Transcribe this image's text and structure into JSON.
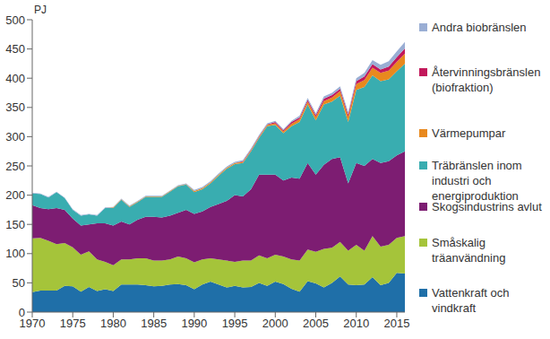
{
  "chart_data": {
    "type": "area",
    "stacked": true,
    "ylabel": "PJ",
    "grid": false,
    "legend": "right",
    "x": [
      1970,
      1971,
      1972,
      1973,
      1974,
      1975,
      1976,
      1977,
      1978,
      1979,
      1980,
      1981,
      1982,
      1983,
      1984,
      1985,
      1986,
      1987,
      1988,
      1989,
      1990,
      1991,
      1992,
      1993,
      1994,
      1995,
      1996,
      1997,
      1998,
      1999,
      2000,
      2001,
      2002,
      2003,
      2004,
      2005,
      2006,
      2007,
      2008,
      2009,
      2010,
      2011,
      2012,
      2013,
      2014,
      2015,
      2016
    ],
    "xlim": [
      1970,
      2016
    ],
    "xticks": [
      1970,
      1975,
      1980,
      1985,
      1990,
      1995,
      2000,
      2005,
      2010,
      2015
    ],
    "ylim": [
      0,
      500
    ],
    "yticks": [
      0,
      50,
      100,
      150,
      200,
      250,
      300,
      350,
      400,
      450,
      500
    ],
    "series": [
      {
        "name": "Vattenkraft och vindkraft",
        "color": "#1f6fa8",
        "values": [
          34,
          37,
          37,
          37,
          45,
          44,
          35,
          43,
          36,
          39,
          36,
          47,
          47,
          47,
          46,
          44,
          45,
          47,
          48,
          46,
          39,
          47,
          52,
          47,
          42,
          45,
          42,
          43,
          50,
          45,
          52,
          48,
          40,
          35,
          53,
          49,
          42,
          50,
          61,
          47,
          46,
          47,
          60,
          46,
          50,
          67,
          66
        ]
      },
      {
        "name": "Småskalig träanvändning",
        "color": "#a5c43a",
        "values": [
          92,
          90,
          85,
          79,
          73,
          67,
          63,
          61,
          54,
          47,
          44,
          43,
          43,
          45,
          46,
          44,
          43,
          43,
          47,
          46,
          46,
          43,
          40,
          43,
          46,
          41,
          46,
          45,
          47,
          47,
          46,
          47,
          50,
          53,
          54,
          54,
          66,
          60,
          59,
          58,
          69,
          58,
          70,
          66,
          65,
          60,
          64
        ]
      },
      {
        "name": "Skogsindustrins avlut",
        "color": "#7d1d72",
        "values": [
          57,
          51,
          54,
          62,
          57,
          49,
          50,
          46,
          62,
          66,
          68,
          65,
          60,
          66,
          71,
          75,
          74,
          75,
          75,
          83,
          83,
          82,
          88,
          95,
          102,
          114,
          110,
          122,
          138,
          143,
          137,
          130,
          140,
          140,
          148,
          132,
          144,
          152,
          145,
          115,
          140,
          145,
          132,
          143,
          143,
          141,
          145
        ]
      },
      {
        "name": "Träbränslen inom industri och energiproduktion",
        "color": "#39adb0",
        "values": [
          20,
          24,
          20,
          27,
          20,
          15,
          17,
          17,
          13,
          26,
          30,
          37,
          30,
          30,
          34,
          34,
          35,
          41,
          45,
          43,
          37,
          38,
          40,
          48,
          55,
          53,
          57,
          65,
          63,
          83,
          85,
          81,
          88,
          97,
          100,
          93,
          103,
          98,
          105,
          105,
          125,
          135,
          143,
          140,
          140,
          144,
          150
        ]
      },
      {
        "name": "Värmepumpar",
        "color": "#e8891e",
        "values": [
          0,
          0,
          0,
          0,
          0,
          0,
          0,
          0,
          0,
          0,
          1,
          1,
          1,
          1,
          1,
          1,
          1,
          1,
          1,
          1,
          2,
          2,
          2,
          2,
          2,
          2,
          2,
          2,
          2,
          2,
          3,
          3,
          4,
          5,
          5,
          6,
          6,
          7,
          8,
          9,
          10,
          12,
          13,
          14,
          15,
          16,
          17
        ]
      },
      {
        "name": "Återvinningsbränslen (biofraktion)",
        "color": "#c2185b",
        "values": [
          0,
          0,
          0,
          0,
          0,
          0,
          0,
          0,
          0,
          0,
          0,
          0,
          0,
          0,
          0,
          0,
          0,
          0,
          0,
          0,
          0,
          0,
          0,
          0,
          0,
          0,
          1,
          1,
          1,
          1,
          2,
          2,
          3,
          3,
          3,
          3,
          4,
          4,
          4,
          4,
          5,
          6,
          6,
          6,
          7,
          8,
          9
        ]
      },
      {
        "name": "Andra biobränslen",
        "color": "#9aaed4",
        "values": [
          1,
          1,
          1,
          1,
          1,
          1,
          1,
          1,
          1,
          1,
          1,
          1,
          1,
          1,
          1,
          1,
          1,
          1,
          1,
          1,
          2,
          2,
          2,
          2,
          2,
          2,
          2,
          2,
          2,
          2,
          2,
          2,
          2,
          3,
          3,
          3,
          4,
          4,
          4,
          4,
          5,
          6,
          7,
          8,
          9,
          10,
          11
        ]
      }
    ]
  }
}
